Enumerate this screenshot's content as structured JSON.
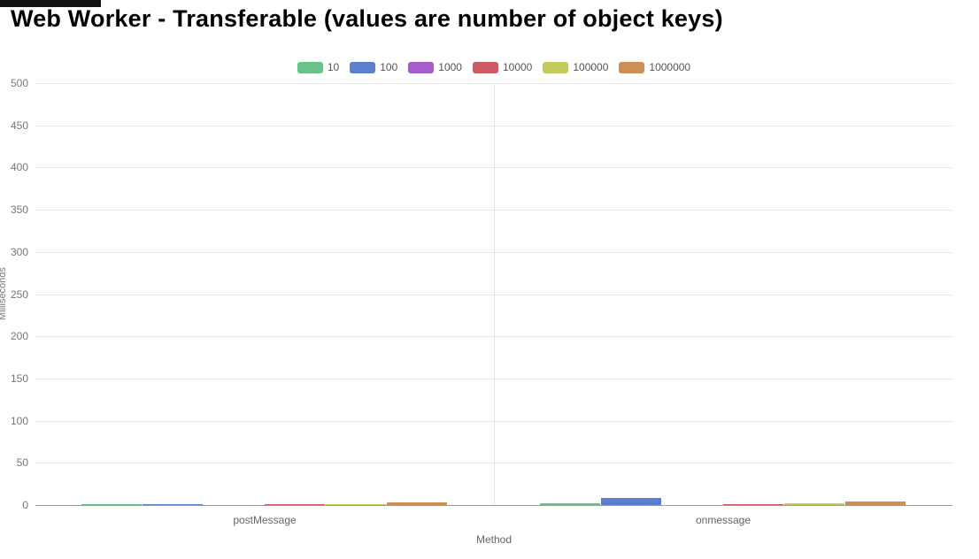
{
  "chart_data": {
    "type": "bar",
    "title": "Web Worker - Transferable (values are number of object keys)",
    "xlabel": "Method",
    "ylabel": "Milliseconds",
    "categories": [
      "postMessage",
      "onmessage"
    ],
    "series": [
      {
        "name": "10",
        "color": "#69c287",
        "values": [
          1.5,
          2
        ]
      },
      {
        "name": "100",
        "color": "#5b7fcc",
        "values": [
          0.7,
          8
        ]
      },
      {
        "name": "1000",
        "color": "#a65dcc",
        "values": [
          0.4,
          0.5
        ]
      },
      {
        "name": "10000",
        "color": "#cc5b66",
        "values": [
          0.6,
          0.7
        ]
      },
      {
        "name": "100000",
        "color": "#c3cc5b",
        "values": [
          0.8,
          2
        ]
      },
      {
        "name": "1000000",
        "color": "#cc8f55",
        "values": [
          3,
          4
        ]
      }
    ],
    "ylim": [
      0,
      500
    ],
    "ytick_step": 50,
    "grid": true,
    "legend_position": "top-center"
  }
}
